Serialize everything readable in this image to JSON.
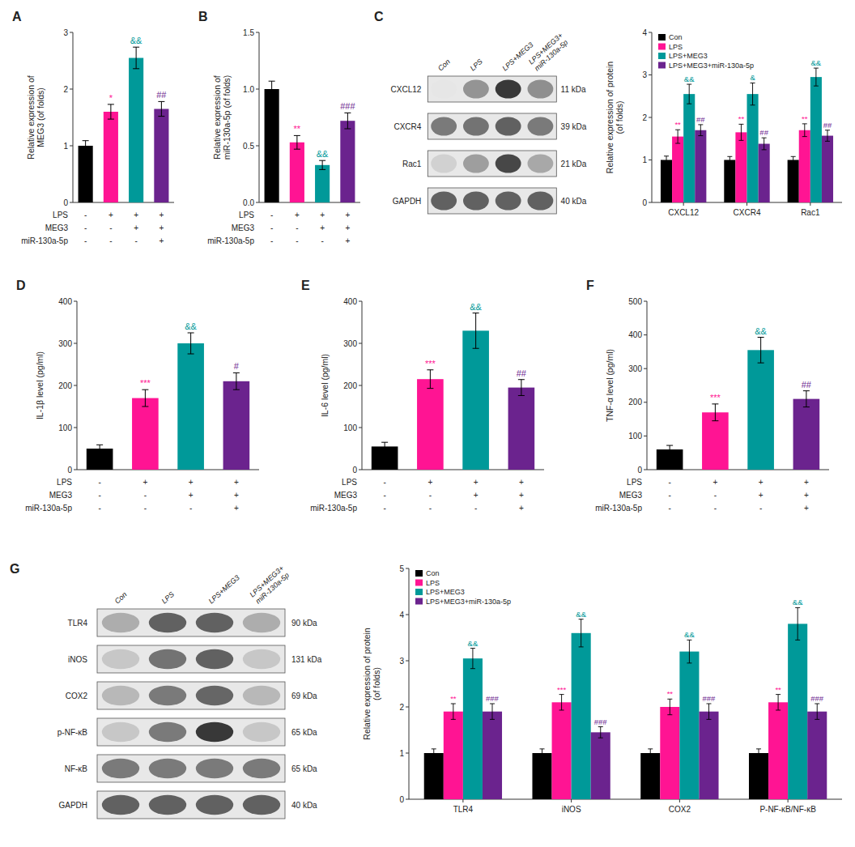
{
  "chart_data": [
    {
      "type": "bar",
      "title": "A",
      "ylabel": "Relative expression of\nMEG3 (of folds)",
      "categories": [
        null,
        null,
        null,
        null
      ],
      "values": [
        1.0,
        1.6,
        2.55,
        1.65
      ],
      "errors": [
        0.09,
        0.13,
        0.19,
        0.13
      ],
      "colors": [
        "#000000",
        "#FF1493",
        "#009999",
        "#6B238E"
      ],
      "ylim": [
        0,
        3
      ],
      "yticks": [
        0,
        1,
        2,
        3
      ],
      "conditions": [
        {
          "label": "LPS",
          "values": [
            "-",
            "+",
            "+",
            "+"
          ]
        },
        {
          "label": "MEG3",
          "values": [
            "-",
            "-",
            "+",
            "+"
          ]
        },
        {
          "label": "miR-130a-5p",
          "values": [
            "-",
            "-",
            "-",
            "+"
          ]
        }
      ],
      "annotations": [
        {
          "text": "*",
          "color": "#FF1493",
          "index": 1
        },
        {
          "text": "&&",
          "color": "#009999",
          "index": 2
        },
        {
          "text": "##",
          "color": "#6B238E",
          "index": 3
        }
      ]
    },
    {
      "type": "bar",
      "title": "B",
      "ylabel": "Relative expression of\nmiR-130a-5p (of folds)",
      "categories": [
        null,
        null,
        null,
        null
      ],
      "values": [
        1.0,
        0.53,
        0.33,
        0.72
      ],
      "errors": [
        0.07,
        0.06,
        0.04,
        0.07
      ],
      "colors": [
        "#000000",
        "#FF1493",
        "#009999",
        "#6B238E"
      ],
      "ylim": [
        0.0,
        1.5
      ],
      "yticks": [
        {
          "value": 0.0,
          "label": "0.0"
        },
        0.5,
        {
          "value": 1.0,
          "label": "1.0"
        },
        1.5
      ],
      "conditions": [
        {
          "label": "LPS",
          "values": [
            "-",
            "+",
            "+",
            "+"
          ]
        },
        {
          "label": "MEG3",
          "values": [
            "-",
            "-",
            "+",
            "+"
          ]
        },
        {
          "label": "miR-130a-5p",
          "values": [
            "-",
            "-",
            "-",
            "+"
          ]
        }
      ],
      "annotations": [
        {
          "text": "**",
          "color": "#FF1493",
          "index": 1
        },
        {
          "text": "&&",
          "color": "#009999",
          "index": 2
        },
        {
          "text": "###",
          "color": "#6B238E",
          "index": 3
        }
      ]
    },
    {
      "type": "blot",
      "title": "C",
      "categories": [
        "Con",
        "LPS",
        "LPS+MEG3",
        "LPS+MEG3+\nmiR-130a-5p"
      ],
      "row_labels": [
        "CXCL12",
        "CXCR4",
        "Rac1",
        "GAPDH"
      ],
      "row_annotations": [
        "11 kDa",
        "39 kDa",
        "21 kDa",
        "40 kDa"
      ],
      "values": [
        [
          0.1,
          0.42,
          0.78,
          0.44
        ],
        [
          0.52,
          0.55,
          0.62,
          0.52
        ],
        [
          0.18,
          0.38,
          0.72,
          0.34
        ],
        [
          0.62,
          0.62,
          0.62,
          0.62
        ]
      ]
    },
    {
      "type": "bar",
      "ylabel": "Relative expression of protein\n(of folds)",
      "categories": [
        "CXCL12",
        "CXCR4",
        "Rac1"
      ],
      "series": [
        {
          "name": "Con",
          "color": "#000000",
          "values": [
            1.0,
            1.0,
            1.0
          ],
          "errors": [
            0.09,
            0.08,
            0.08
          ]
        },
        {
          "name": "LPS",
          "color": "#FF1493",
          "values": [
            1.55,
            1.65,
            1.7
          ],
          "errors": [
            0.16,
            0.19,
            0.15
          ]
        },
        {
          "name": "LPS+MEG3",
          "color": "#009999",
          "values": [
            2.55,
            2.55,
            2.95
          ],
          "errors": [
            0.23,
            0.26,
            0.21
          ]
        },
        {
          "name": "LPS+MEG3+miR-130a-5p",
          "color": "#6B238E",
          "values": [
            1.7,
            1.38,
            1.57
          ],
          "errors": [
            0.13,
            0.14,
            0.13
          ]
        }
      ],
      "ylim": [
        0,
        4
      ],
      "yticks": [
        0,
        1,
        2,
        3,
        4
      ],
      "legend": "upper left",
      "annotations": [
        {
          "text": "**",
          "color": "#FF1493",
          "category": 0,
          "series": 1
        },
        {
          "text": "&&",
          "color": "#009999",
          "category": 0,
          "series": 2
        },
        {
          "text": "##",
          "color": "#6B238E",
          "category": 0,
          "series": 3
        },
        {
          "text": "**",
          "color": "#FF1493",
          "category": 1,
          "series": 1
        },
        {
          "text": "&",
          "color": "#009999",
          "category": 1,
          "series": 2
        },
        {
          "text": "##",
          "color": "#6B238E",
          "category": 1,
          "series": 3
        },
        {
          "text": "**",
          "color": "#FF1493",
          "category": 2,
          "series": 1
        },
        {
          "text": "&&",
          "color": "#009999",
          "category": 2,
          "series": 2
        },
        {
          "text": "##",
          "color": "#6B238E",
          "category": 2,
          "series": 3
        }
      ]
    },
    {
      "type": "bar",
      "title": "D",
      "ylabel": "IL-1β level (pg/ml)",
      "categories": [
        null,
        null,
        null,
        null
      ],
      "values": [
        50,
        170,
        300,
        210
      ],
      "errors": [
        9,
        20,
        25,
        20
      ],
      "colors": [
        "#000000",
        "#FF1493",
        "#009999",
        "#6B238E"
      ],
      "ylim": [
        0,
        400
      ],
      "yticks": [
        0,
        100,
        200,
        300,
        400
      ],
      "conditions": [
        {
          "label": "LPS",
          "values": [
            "-",
            "+",
            "+",
            "+"
          ]
        },
        {
          "label": "MEG3",
          "values": [
            "-",
            "-",
            "+",
            "+"
          ]
        },
        {
          "label": "miR-130a-5p",
          "values": [
            "-",
            "-",
            "-",
            "+"
          ]
        }
      ],
      "annotations": [
        {
          "text": "***",
          "color": "#FF1493",
          "index": 1
        },
        {
          "text": "&&",
          "color": "#009999",
          "index": 2
        },
        {
          "text": "#",
          "color": "#6B238E",
          "index": 3
        }
      ]
    },
    {
      "type": "bar",
      "title": "E",
      "ylabel": "IL-6 level (pg/ml)",
      "categories": [
        null,
        null,
        null,
        null
      ],
      "values": [
        55,
        215,
        330,
        195
      ],
      "errors": [
        10,
        22,
        42,
        19
      ],
      "colors": [
        "#000000",
        "#FF1493",
        "#009999",
        "#6B238E"
      ],
      "ylim": [
        0,
        400
      ],
      "yticks": [
        0,
        100,
        200,
        300,
        400
      ],
      "conditions": [
        {
          "label": "LPS",
          "values": [
            "-",
            "+",
            "+",
            "+"
          ]
        },
        {
          "label": "MEG3",
          "values": [
            "-",
            "-",
            "+",
            "+"
          ]
        },
        {
          "label": "miR-130a-5p",
          "values": [
            "-",
            "-",
            "-",
            "+"
          ]
        }
      ],
      "annotations": [
        {
          "text": "***",
          "color": "#FF1493",
          "index": 1
        },
        {
          "text": "&&",
          "color": "#009999",
          "index": 2
        },
        {
          "text": "##",
          "color": "#6B238E",
          "index": 3
        }
      ]
    },
    {
      "type": "bar",
      "title": "F",
      "ylabel": "TNF-α level (pg/ml)",
      "categories": [
        null,
        null,
        null,
        null
      ],
      "values": [
        60,
        170,
        355,
        210
      ],
      "errors": [
        12,
        25,
        38,
        24
      ],
      "colors": [
        "#000000",
        "#FF1493",
        "#009999",
        "#6B238E"
      ],
      "ylim": [
        0,
        500
      ],
      "yticks": [
        0,
        100,
        200,
        300,
        400,
        500
      ],
      "conditions": [
        {
          "label": "LPS",
          "values": [
            "-",
            "+",
            "+",
            "+"
          ]
        },
        {
          "label": "MEG3",
          "values": [
            "-",
            "-",
            "+",
            "+"
          ]
        },
        {
          "label": "miR-130a-5p",
          "values": [
            "-",
            "-",
            "-",
            "+"
          ]
        }
      ],
      "annotations": [
        {
          "text": "***",
          "color": "#FF1493",
          "index": 1
        },
        {
          "text": "&&",
          "color": "#009999",
          "index": 2
        },
        {
          "text": "##",
          "color": "#6B238E",
          "index": 3
        }
      ]
    },
    {
      "type": "blot",
      "title": "G",
      "categories": [
        "Con",
        "LPS",
        "LPS+MEG3",
        "LPS+MEG3+\nmiR-130a-5p"
      ],
      "row_labels": [
        "TLR4",
        "iNOS",
        "COX2",
        "p-NF-κB",
        "NF-κB",
        "GAPDH"
      ],
      "row_annotations": [
        "90 kDa",
        "131 kDa",
        "69 kDa",
        "65 kDa",
        "65 kDa",
        "40 kDa"
      ],
      "values": [
        [
          0.32,
          0.62,
          0.62,
          0.32
        ],
        [
          0.22,
          0.55,
          0.62,
          0.22
        ],
        [
          0.28,
          0.52,
          0.6,
          0.28
        ],
        [
          0.22,
          0.52,
          0.78,
          0.22
        ],
        [
          0.52,
          0.52,
          0.52,
          0.52
        ],
        [
          0.62,
          0.62,
          0.62,
          0.62
        ]
      ]
    },
    {
      "type": "bar",
      "ylabel": "Relative expression of protein\n(of folds)",
      "categories": [
        "TLR4",
        "iNOS",
        "COX2",
        "P-NF-κB/NF-κB"
      ],
      "series": [
        {
          "name": "Con",
          "color": "#000000",
          "values": [
            1.0,
            1.0,
            1.0,
            1.0
          ],
          "errors": [
            0.09,
            0.09,
            0.09,
            0.09
          ]
        },
        {
          "name": "LPS",
          "color": "#FF1493",
          "values": [
            1.9,
            2.1,
            2.0,
            2.1
          ],
          "errors": [
            0.17,
            0.17,
            0.17,
            0.17
          ]
        },
        {
          "name": "LPS+MEG3",
          "color": "#009999",
          "values": [
            3.05,
            3.6,
            3.2,
            3.8
          ],
          "errors": [
            0.22,
            0.3,
            0.25,
            0.35
          ]
        },
        {
          "name": "LPS+MEG3+miR-130a-5p",
          "color": "#6B238E",
          "values": [
            1.9,
            1.45,
            1.9,
            1.9
          ],
          "errors": [
            0.17,
            0.12,
            0.17,
            0.17
          ]
        }
      ],
      "ylim": [
        0,
        5
      ],
      "yticks": [
        0,
        1,
        2,
        3,
        4,
        5
      ],
      "legend": "upper left",
      "annotations": [
        {
          "text": "**",
          "color": "#FF1493",
          "category": 0,
          "series": 1
        },
        {
          "text": "&&",
          "color": "#009999",
          "category": 0,
          "series": 2
        },
        {
          "text": "###",
          "color": "#6B238E",
          "category": 0,
          "series": 3
        },
        {
          "text": "***",
          "color": "#FF1493",
          "category": 1,
          "series": 1
        },
        {
          "text": "&&",
          "color": "#009999",
          "category": 1,
          "series": 2
        },
        {
          "text": "###",
          "color": "#6B238E",
          "category": 1,
          "series": 3
        },
        {
          "text": "**",
          "color": "#FF1493",
          "category": 2,
          "series": 1
        },
        {
          "text": "&&",
          "color": "#009999",
          "category": 2,
          "series": 2
        },
        {
          "text": "###",
          "color": "#6B238E",
          "category": 2,
          "series": 3
        },
        {
          "text": "**",
          "color": "#FF1493",
          "category": 3,
          "series": 1
        },
        {
          "text": "&&",
          "color": "#009999",
          "category": 3,
          "series": 2
        },
        {
          "text": "###",
          "color": "#6B238E",
          "category": 3,
          "series": 3
        }
      ]
    }
  ]
}
